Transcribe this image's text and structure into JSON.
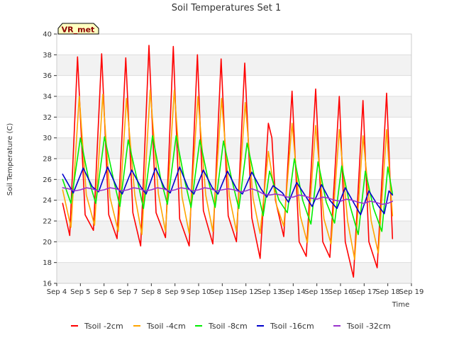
{
  "chart_data": {
    "type": "line",
    "title": "Soil Temperatures Set 1",
    "xlabel": "Time",
    "ylabel": "Soil Temperature (C)",
    "site_label": "VR_met",
    "ylim": [
      16,
      40
    ],
    "yticks": [
      16,
      18,
      20,
      22,
      24,
      26,
      28,
      30,
      32,
      34,
      36,
      38,
      40
    ],
    "xlim": [
      4,
      19
    ],
    "x_ticks": [
      {
        "value": 4,
        "label": "Sep 4"
      },
      {
        "value": 5,
        "label": "Sep 5"
      },
      {
        "value": 6,
        "label": "Sep 6"
      },
      {
        "value": 7,
        "label": "Sep 7"
      },
      {
        "value": 8,
        "label": "Sep 8"
      },
      {
        "value": 9,
        "label": "Sep 9"
      },
      {
        "value": 10,
        "label": "Sep 10"
      },
      {
        "value": 11,
        "label": "Sep 11"
      },
      {
        "value": 12,
        "label": "Sep 12"
      },
      {
        "value": 13,
        "label": "Sep 13"
      },
      {
        "value": 14,
        "label": "Sep 14"
      },
      {
        "value": 15,
        "label": "Sep 15"
      },
      {
        "value": 16,
        "label": "Sep 16"
      },
      {
        "value": 17,
        "label": "Sep 17"
      },
      {
        "value": 18,
        "label": "Sep 18"
      },
      {
        "value": 19,
        "label": "Sep 19"
      }
    ],
    "grid": true,
    "legend_position": "bottom",
    "series": [
      {
        "name": "Tsoil -2cm",
        "color": "#ff0000",
        "x": [
          4.25,
          4.55,
          4.88,
          5.2,
          5.55,
          5.9,
          6.2,
          6.55,
          6.92,
          7.22,
          7.55,
          7.9,
          8.2,
          8.6,
          8.93,
          9.2,
          9.6,
          9.95,
          10.2,
          10.6,
          10.95,
          11.25,
          11.6,
          11.95,
          12.25,
          12.6,
          12.95,
          13.1,
          13.25,
          13.6,
          13.95,
          14.25,
          14.55,
          14.95,
          15.25,
          15.55,
          15.95,
          16.2,
          16.55,
          16.95,
          17.2,
          17.55,
          17.95,
          18.2
        ],
        "y": [
          23.7,
          20.6,
          37.8,
          22.6,
          21.1,
          38.1,
          22.6,
          20.3,
          37.7,
          22.8,
          19.6,
          38.9,
          22.8,
          20.4,
          38.8,
          22.2,
          19.6,
          38.0,
          23.0,
          19.8,
          37.6,
          22.5,
          20.0,
          37.2,
          22.3,
          18.4,
          31.4,
          30.0,
          24.0,
          20.5,
          34.5,
          20.0,
          18.6,
          34.7,
          20.0,
          18.5,
          34.0,
          20.0,
          16.6,
          33.6,
          20.0,
          17.5,
          34.3,
          20.3
        ]
      },
      {
        "name": "Tsoil -4cm",
        "color": "#ffa500",
        "x": [
          4.25,
          4.6,
          4.95,
          5.25,
          5.6,
          5.95,
          6.25,
          6.6,
          6.95,
          7.3,
          7.6,
          7.95,
          8.3,
          8.6,
          8.97,
          9.3,
          9.6,
          9.97,
          10.3,
          10.6,
          10.97,
          11.3,
          11.6,
          11.97,
          12.3,
          12.6,
          12.95,
          13.3,
          13.6,
          13.95,
          14.3,
          14.6,
          14.95,
          15.3,
          15.6,
          15.95,
          16.3,
          16.6,
          16.95,
          17.3,
          17.6,
          17.95,
          18.2
        ],
        "y": [
          25.0,
          21.4,
          34.0,
          24.5,
          21.6,
          34.2,
          24.3,
          21.0,
          33.8,
          24.5,
          20.7,
          34.6,
          24.6,
          21.0,
          34.6,
          24.3,
          20.8,
          34.0,
          24.5,
          21.0,
          33.8,
          24.4,
          21.0,
          33.4,
          24.2,
          20.8,
          28.7,
          23.5,
          21.5,
          31.4,
          22.5,
          19.9,
          31.2,
          22.2,
          19.8,
          30.8,
          22.0,
          18.3,
          30.2,
          22.0,
          18.9,
          30.8,
          22.5
        ]
      },
      {
        "name": "Tsoil -8cm",
        "color": "#00ee00",
        "x": [
          4.25,
          4.6,
          5.0,
          5.35,
          5.65,
          6.02,
          6.4,
          6.67,
          7.02,
          7.4,
          7.67,
          8.05,
          8.4,
          8.68,
          9.05,
          9.4,
          9.68,
          10.05,
          10.4,
          10.7,
          11.05,
          11.4,
          11.7,
          12.05,
          12.4,
          12.73,
          13.0,
          13.4,
          13.75,
          14.05,
          14.4,
          14.75,
          15.05,
          15.4,
          15.75,
          16.05,
          16.4,
          16.75,
          17.05,
          17.4,
          17.75,
          18.0,
          18.2
        ],
        "y": [
          26.0,
          23.7,
          30.0,
          26.0,
          23.7,
          30.1,
          26.0,
          23.4,
          29.8,
          26.0,
          23.2,
          30.2,
          26.0,
          23.6,
          30.2,
          26.0,
          23.3,
          29.8,
          26.0,
          23.3,
          29.7,
          26.0,
          23.2,
          29.5,
          25.8,
          22.5,
          26.8,
          24.0,
          22.8,
          28.0,
          24.0,
          21.7,
          27.7,
          23.8,
          21.8,
          27.3,
          23.5,
          20.7,
          26.8,
          23.2,
          21.0,
          27.2,
          24.6
        ]
      },
      {
        "name": "Tsoil -16cm",
        "color": "#0000cc",
        "x": [
          4.25,
          4.7,
          5.12,
          5.5,
          5.77,
          6.15,
          6.55,
          6.77,
          7.17,
          7.55,
          7.78,
          8.18,
          8.55,
          8.8,
          9.2,
          9.55,
          9.8,
          10.2,
          10.58,
          10.82,
          11.22,
          11.6,
          11.85,
          12.25,
          12.63,
          12.88,
          13.15,
          13.55,
          13.8,
          14.15,
          14.55,
          14.8,
          15.2,
          15.55,
          15.85,
          16.2,
          16.55,
          16.85,
          17.2,
          17.55,
          17.85,
          18.05,
          18.2
        ],
        "y": [
          26.5,
          24.7,
          27.1,
          25.3,
          24.8,
          27.2,
          25.2,
          24.6,
          26.9,
          25.3,
          24.6,
          27.1,
          25.2,
          24.7,
          27.2,
          25.2,
          24.6,
          26.9,
          25.2,
          24.6,
          26.8,
          25.1,
          24.6,
          26.7,
          25.1,
          24.3,
          25.4,
          24.7,
          23.8,
          25.7,
          24.3,
          23.4,
          25.5,
          24.0,
          23.2,
          25.2,
          23.8,
          22.6,
          24.9,
          23.6,
          22.7,
          24.9,
          24.5
        ]
      },
      {
        "name": "Tsoil -32cm",
        "color": "#9933cc",
        "x": [
          4.25,
          4.5,
          4.75,
          5.0,
          5.25,
          5.5,
          5.75,
          6.0,
          6.25,
          6.5,
          6.75,
          7.0,
          7.25,
          7.5,
          7.75,
          8.0,
          8.25,
          8.5,
          8.75,
          9.0,
          9.25,
          9.5,
          9.75,
          10.0,
          10.25,
          10.5,
          10.75,
          11.0,
          11.25,
          11.5,
          11.75,
          12.0,
          12.25,
          12.5,
          12.75,
          13.0,
          13.25,
          13.5,
          13.75,
          14.0,
          14.25,
          14.5,
          14.75,
          15.0,
          15.25,
          15.5,
          15.75,
          16.0,
          16.25,
          16.5,
          16.75,
          17.0,
          17.25,
          17.5,
          17.75,
          18.0,
          18.2
        ],
        "y": [
          25.2,
          25.1,
          24.9,
          25.0,
          25.2,
          25.1,
          24.9,
          25.0,
          25.2,
          25.1,
          24.9,
          25.0,
          25.2,
          25.1,
          24.9,
          25.0,
          25.2,
          25.1,
          24.9,
          25.0,
          25.2,
          25.1,
          24.9,
          25.0,
          25.2,
          25.1,
          24.9,
          25.0,
          25.1,
          25.0,
          24.8,
          24.9,
          25.1,
          24.9,
          24.6,
          24.5,
          24.6,
          24.5,
          24.3,
          24.3,
          24.5,
          24.4,
          24.2,
          24.1,
          24.3,
          24.2,
          24.0,
          23.9,
          24.1,
          24.0,
          23.8,
          23.7,
          23.9,
          23.8,
          23.6,
          23.7,
          23.9
        ]
      }
    ]
  }
}
